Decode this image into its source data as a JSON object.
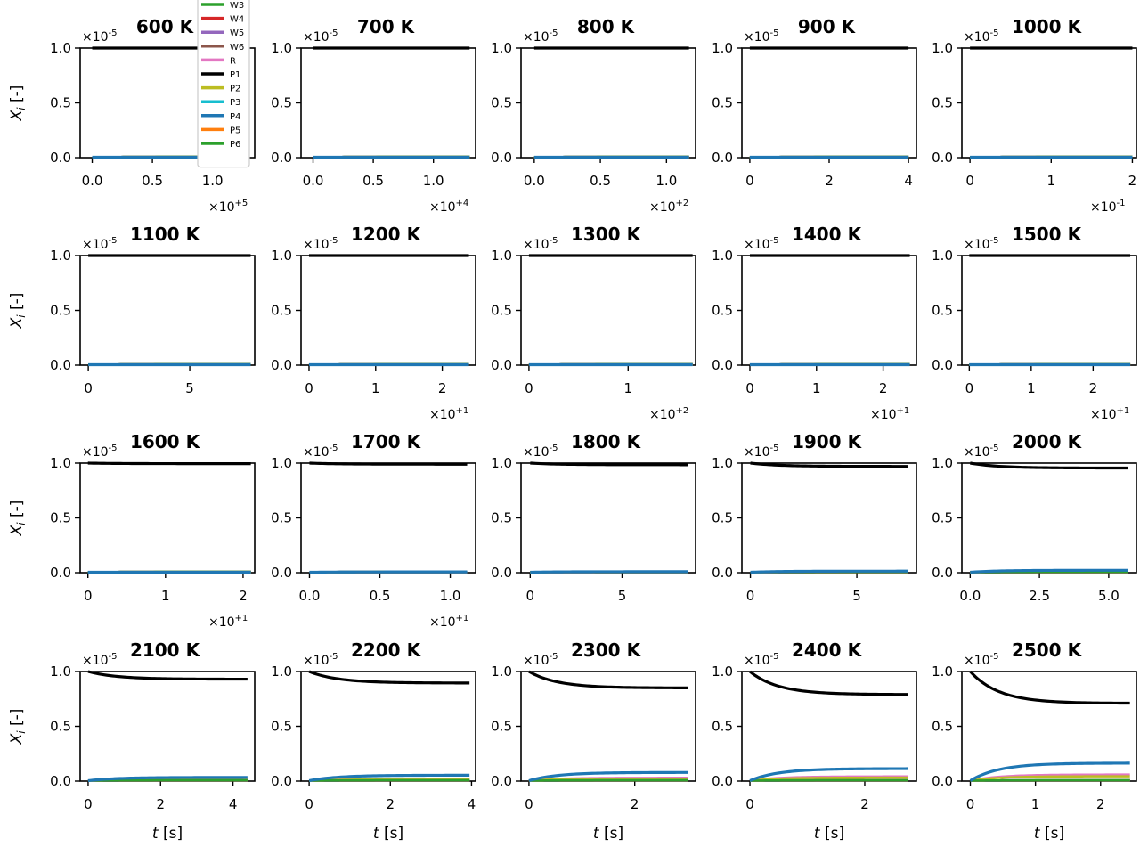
{
  "figure": {
    "ylabel": "X_i [-]",
    "xlabel": "t [s]",
    "y_multiplier": "×10^-5"
  },
  "legend": {
    "placement": "top, overlapping first panel",
    "entries": [
      {
        "label": "W3",
        "color": "#2ca02c"
      },
      {
        "label": "W4",
        "color": "#d62728"
      },
      {
        "label": "W5",
        "color": "#9467bd"
      },
      {
        "label": "W6",
        "color": "#8c564b"
      },
      {
        "label": "R",
        "color": "#e377c2"
      },
      {
        "label": "P1",
        "color": "#000000"
      },
      {
        "label": "P2",
        "color": "#bcbd22"
      },
      {
        "label": "P3",
        "color": "#17becf"
      },
      {
        "label": "P4",
        "color": "#1f77b4"
      },
      {
        "label": "P5",
        "color": "#ff7f0e"
      },
      {
        "label": "P6",
        "color": "#2ca02c"
      }
    ]
  },
  "chart_data": [
    {
      "type": "line",
      "title": "600 K",
      "xlim": [
        -0.1,
        1.35
      ],
      "xticks": [
        0,
        0.5,
        1.0
      ],
      "xticklabels": [
        "0.0",
        "0.5",
        "1.0"
      ],
      "x_multiplier": "×10^+5",
      "ylim": [
        0,
        1
      ],
      "yticklabels": [
        "0.0",
        "0.5",
        "1.0"
      ],
      "t_end": 1.3,
      "series": [
        {
          "name": "P1",
          "y_end": 1.0
        },
        {
          "name": "P4",
          "y_end": 0.0
        }
      ]
    },
    {
      "type": "line",
      "title": "700 K",
      "xlim": [
        -0.1,
        1.35
      ],
      "xticks": [
        0,
        0.5,
        1.0
      ],
      "xticklabels": [
        "0.0",
        "0.5",
        "1.0"
      ],
      "x_multiplier": "×10^+4",
      "ylim": [
        0,
        1
      ],
      "yticklabels": [
        "0.0",
        "0.5",
        "1.0"
      ],
      "t_end": 1.3,
      "series": [
        {
          "name": "P1",
          "y_end": 1.0
        },
        {
          "name": "P4",
          "y_end": 0.0
        }
      ]
    },
    {
      "type": "line",
      "title": "800 K",
      "xlim": [
        -0.1,
        1.22
      ],
      "xticks": [
        0,
        0.5,
        1.0
      ],
      "xticklabels": [
        "0.0",
        "0.5",
        "1.0"
      ],
      "x_multiplier": "×10^+2",
      "ylim": [
        0,
        1
      ],
      "yticklabels": [
        "0.0",
        "0.5",
        "1.0"
      ],
      "t_end": 1.17,
      "series": [
        {
          "name": "P1",
          "y_end": 1.0
        },
        {
          "name": "P4",
          "y_end": 0.0
        }
      ]
    },
    {
      "type": "line",
      "title": "900 K",
      "xlim": [
        -0.2,
        4.2
      ],
      "xticks": [
        0,
        2,
        4
      ],
      "xticklabels": [
        "0",
        "2",
        "4"
      ],
      "x_multiplier": "",
      "ylim": [
        0,
        1
      ],
      "yticklabels": [
        "0.0",
        "0.5",
        "1.0"
      ],
      "t_end": 4.0,
      "series": [
        {
          "name": "P1",
          "y_end": 1.0
        },
        {
          "name": "P4",
          "y_end": 0.0
        }
      ]
    },
    {
      "type": "line",
      "title": "1000 K",
      "xlim": [
        -0.1,
        2.05
      ],
      "xticks": [
        0,
        1,
        2
      ],
      "xticklabels": [
        "0",
        "1",
        "2"
      ],
      "x_multiplier": "×10^-1",
      "ylim": [
        0,
        1
      ],
      "yticklabels": [
        "0.0",
        "0.5",
        "1.0"
      ],
      "t_end": 2.0,
      "series": [
        {
          "name": "P1",
          "y_end": 1.0
        },
        {
          "name": "P4",
          "y_end": 0.0
        }
      ]
    },
    {
      "type": "line",
      "title": "1100 K",
      "xlim": [
        -0.4,
        8.2
      ],
      "xticks": [
        0,
        5
      ],
      "xticklabels": [
        "0",
        "5"
      ],
      "x_multiplier": "",
      "ylim": [
        0,
        1
      ],
      "yticklabels": [
        "0.0",
        "0.5",
        "1.0"
      ],
      "t_end": 8.0,
      "series": [
        {
          "name": "P1",
          "y_end": 1.0
        },
        {
          "name": "P4",
          "y_end": 0.0
        }
      ]
    },
    {
      "type": "line",
      "title": "1200 K",
      "xlim": [
        -0.12,
        2.5
      ],
      "xticks": [
        0,
        1,
        2
      ],
      "xticklabels": [
        "0",
        "1",
        "2"
      ],
      "x_multiplier": "×10^+1",
      "ylim": [
        0,
        1
      ],
      "yticklabels": [
        "0.0",
        "0.5",
        "1.0"
      ],
      "t_end": 2.4,
      "series": [
        {
          "name": "P1",
          "y_end": 1.0
        },
        {
          "name": "P4",
          "y_end": 0.0
        }
      ]
    },
    {
      "type": "line",
      "title": "1300 K",
      "xlim": [
        -0.08,
        1.68
      ],
      "xticks": [
        0,
        1
      ],
      "xticklabels": [
        "0",
        "1"
      ],
      "x_multiplier": "×10^+2",
      "ylim": [
        0,
        1
      ],
      "yticklabels": [
        "0.0",
        "0.5",
        "1.0"
      ],
      "t_end": 1.65,
      "series": [
        {
          "name": "P1",
          "y_end": 1.0
        },
        {
          "name": "P4",
          "y_end": 0.0
        }
      ]
    },
    {
      "type": "line",
      "title": "1400 K",
      "xlim": [
        -0.12,
        2.5
      ],
      "xticks": [
        0,
        1,
        2
      ],
      "xticklabels": [
        "0",
        "1",
        "2"
      ],
      "x_multiplier": "×10^+1",
      "ylim": [
        0,
        1
      ],
      "yticklabels": [
        "0.0",
        "0.5",
        "1.0"
      ],
      "t_end": 2.4,
      "series": [
        {
          "name": "P1",
          "y_end": 1.0
        },
        {
          "name": "P4",
          "y_end": 0.0
        }
      ]
    },
    {
      "type": "line",
      "title": "1500 K",
      "xlim": [
        -0.12,
        2.7
      ],
      "xticks": [
        0,
        1,
        2
      ],
      "xticklabels": [
        "0",
        "1",
        "2"
      ],
      "x_multiplier": "×10^+1",
      "ylim": [
        0,
        1
      ],
      "yticklabels": [
        "0.0",
        "0.5",
        "1.0"
      ],
      "t_end": 2.6,
      "series": [
        {
          "name": "P1",
          "y_end": 1.0
        },
        {
          "name": "P4",
          "y_end": 0.0
        }
      ]
    },
    {
      "type": "line",
      "title": "1600 K",
      "xlim": [
        -0.1,
        2.15
      ],
      "xticks": [
        0,
        1,
        2
      ],
      "xticklabels": [
        "0",
        "1",
        "2"
      ],
      "x_multiplier": "×10^+1",
      "ylim": [
        0,
        1
      ],
      "yticklabels": [
        "0.0",
        "0.5",
        "1.0"
      ],
      "t_end": 2.1,
      "series": [
        {
          "name": "P1",
          "y_end": 0.995
        },
        {
          "name": "P4",
          "y_end": 0.0
        }
      ]
    },
    {
      "type": "line",
      "title": "1700 K",
      "xlim": [
        -0.06,
        1.18
      ],
      "xticks": [
        0,
        0.5,
        1.0
      ],
      "xticklabels": [
        "0.0",
        "0.5",
        "1.0"
      ],
      "x_multiplier": "×10^+1",
      "ylim": [
        0,
        1
      ],
      "yticklabels": [
        "0.0",
        "0.5",
        "1.0"
      ],
      "t_end": 1.12,
      "series": [
        {
          "name": "P1",
          "y_end": 0.99
        },
        {
          "name": "P4",
          "y_end": 0.003
        }
      ]
    },
    {
      "type": "line",
      "title": "1800 K",
      "xlim": [
        -0.5,
        9.0
      ],
      "xticks": [
        0,
        5
      ],
      "xticklabels": [
        "0",
        "5"
      ],
      "x_multiplier": "",
      "ylim": [
        0,
        1
      ],
      "yticklabels": [
        "0.0",
        "0.5",
        "1.0"
      ],
      "t_end": 8.6,
      "series": [
        {
          "name": "P1",
          "y_end": 0.985
        },
        {
          "name": "P4",
          "y_end": 0.005
        }
      ]
    },
    {
      "type": "line",
      "title": "1900 K",
      "xlim": [
        -0.4,
        7.8
      ],
      "xticks": [
        0,
        5
      ],
      "xticklabels": [
        "0",
        "5"
      ],
      "x_multiplier": "",
      "ylim": [
        0,
        1
      ],
      "yticklabels": [
        "0.0",
        "0.5",
        "1.0"
      ],
      "t_end": 7.4,
      "series": [
        {
          "name": "P1",
          "y_end": 0.97
        },
        {
          "name": "P4",
          "y_end": 0.01
        }
      ]
    },
    {
      "type": "line",
      "title": "2000 K",
      "xlim": [
        -0.3,
        6.0
      ],
      "xticks": [
        0,
        2.5,
        5.0
      ],
      "xticklabels": [
        "0.0",
        "2.5",
        "5.0"
      ],
      "x_multiplier": "",
      "ylim": [
        0,
        1
      ],
      "yticklabels": [
        "0.0",
        "0.5",
        "1.0"
      ],
      "t_end": 5.7,
      "series": [
        {
          "name": "P1",
          "y_end": 0.955
        },
        {
          "name": "P4",
          "y_end": 0.018
        }
      ]
    },
    {
      "type": "line",
      "title": "2100 K",
      "xlim": [
        -0.22,
        4.6
      ],
      "xticks": [
        0,
        2,
        4
      ],
      "xticklabels": [
        "0",
        "2",
        "4"
      ],
      "x_multiplier": "",
      "ylim": [
        0,
        1
      ],
      "yticklabels": [
        "0.0",
        "0.5",
        "1.0"
      ],
      "t_end": 4.4,
      "series": [
        {
          "name": "P1",
          "y_end": 0.93
        },
        {
          "name": "P4",
          "y_end": 0.03
        }
      ]
    },
    {
      "type": "line",
      "title": "2200 K",
      "xlim": [
        -0.2,
        4.1
      ],
      "xticks": [
        0,
        2,
        4
      ],
      "xticklabels": [
        "0",
        "2",
        "4"
      ],
      "x_multiplier": "",
      "ylim": [
        0,
        1
      ],
      "yticklabels": [
        "0.0",
        "0.5",
        "1.0"
      ],
      "t_end": 3.95,
      "series": [
        {
          "name": "P1",
          "y_end": 0.895
        },
        {
          "name": "P4",
          "y_end": 0.05
        }
      ]
    },
    {
      "type": "line",
      "title": "2300 K",
      "xlim": [
        -0.15,
        3.15
      ],
      "xticks": [
        0,
        2
      ],
      "xticklabels": [
        "0",
        "2"
      ],
      "x_multiplier": "",
      "ylim": [
        0,
        1
      ],
      "yticklabels": [
        "0.0",
        "0.5",
        "1.0"
      ],
      "t_end": 3.0,
      "series": [
        {
          "name": "P1",
          "y_end": 0.85
        },
        {
          "name": "P4",
          "y_end": 0.075
        }
      ]
    },
    {
      "type": "line",
      "title": "2400 K",
      "xlim": [
        -0.14,
        2.9
      ],
      "xticks": [
        0,
        2
      ],
      "xticklabels": [
        "0",
        "2"
      ],
      "x_multiplier": "",
      "ylim": [
        0,
        1
      ],
      "yticklabels": [
        "0.0",
        "0.5",
        "1.0"
      ],
      "t_end": 2.75,
      "series": [
        {
          "name": "P1",
          "y_end": 0.79
        },
        {
          "name": "P4",
          "y_end": 0.11
        }
      ]
    },
    {
      "type": "line",
      "title": "2500 K",
      "xlim": [
        -0.13,
        2.55
      ],
      "xticks": [
        0,
        1,
        2
      ],
      "xticklabels": [
        "0",
        "1",
        "2"
      ],
      "x_multiplier": "",
      "ylim": [
        0,
        1
      ],
      "yticklabels": [
        "0.0",
        "0.5",
        "1.0"
      ],
      "t_end": 2.45,
      "series": [
        {
          "name": "P1",
          "y_end": 0.71
        },
        {
          "name": "P4",
          "y_end": 0.16
        }
      ]
    }
  ]
}
